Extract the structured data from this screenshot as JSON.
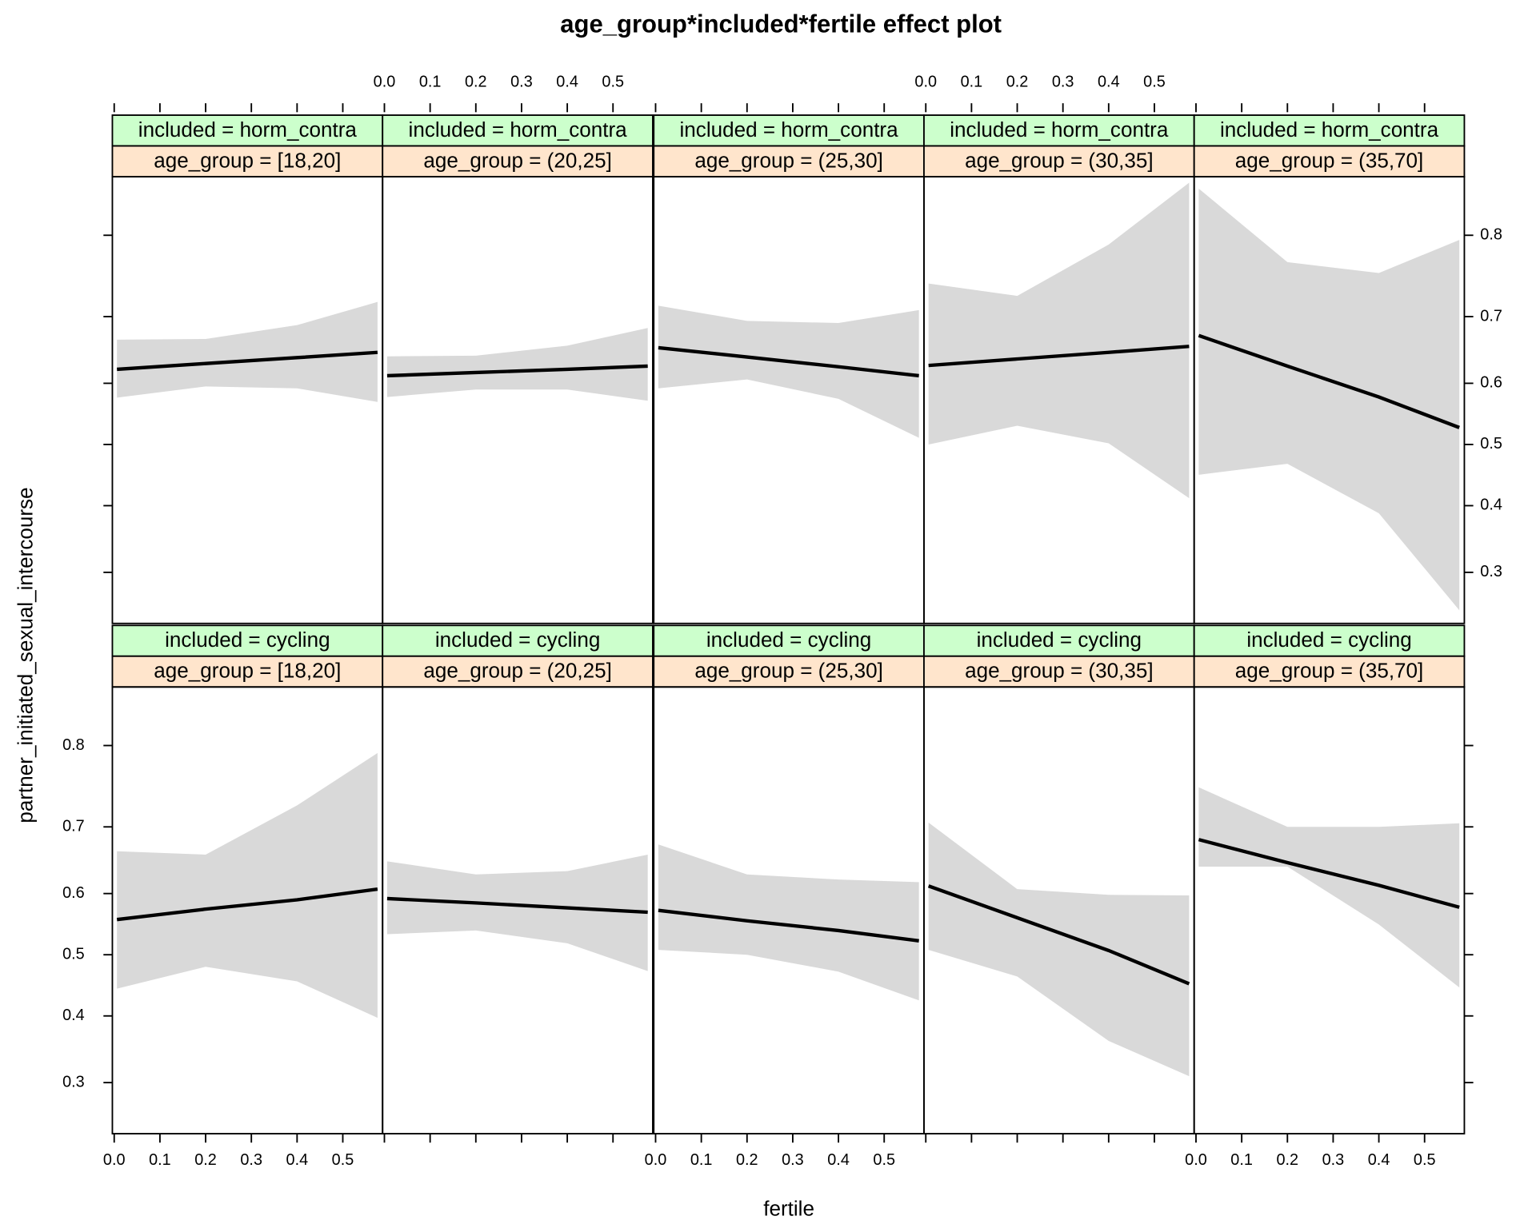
{
  "title": "age_group*included*fertile effect plot",
  "x_label": "fertile",
  "y_label": "partner_initiated_sexual_intercourse",
  "xlim": [
    -0.004,
    0.587
  ],
  "xticks": [
    {
      "value": 0,
      "label": "0.0"
    },
    0.1,
    0.2,
    0.3,
    0.4,
    0.5
  ],
  "ylim": [
    0.234,
    0.855
  ],
  "yticks": [
    0.3,
    0.4,
    0.5,
    0.6,
    0.7,
    0.8
  ],
  "y_scale": "logit",
  "line_color": "#000000",
  "band_color": "#d9d9d9",
  "strip_colors": [
    "#ccffcc",
    "#ffe5cc"
  ],
  "chart_data": [
    {
      "type": "line",
      "strips": [
        "included = horm_contra",
        "age_group = [18,20]"
      ],
      "x": [
        0.006,
        0.2,
        0.4,
        0.576
      ],
      "values": [
        0.622,
        0.631,
        0.64,
        0.648
      ],
      "upper": [
        0.667,
        0.668,
        0.688,
        0.72
      ],
      "lower": [
        0.577,
        0.595,
        0.592,
        0.57
      ]
    },
    {
      "type": "line",
      "strips": [
        "included = horm_contra",
        "age_group = (20,25]"
      ],
      "x": [
        0.006,
        0.2,
        0.4,
        0.576
      ],
      "values": [
        0.612,
        0.617,
        0.622,
        0.627
      ],
      "upper": [
        0.642,
        0.643,
        0.658,
        0.684
      ],
      "lower": [
        0.578,
        0.59,
        0.59,
        0.572
      ]
    },
    {
      "type": "line",
      "strips": [
        "included = horm_contra",
        "age_group = (25,30]"
      ],
      "x": [
        0.006,
        0.2,
        0.4,
        0.576
      ],
      "values": [
        0.655,
        0.641,
        0.626,
        0.612
      ],
      "upper": [
        0.715,
        0.694,
        0.691,
        0.709
      ],
      "lower": [
        0.592,
        0.606,
        0.575,
        0.511
      ]
    },
    {
      "type": "line",
      "strips": [
        "included = horm_contra",
        "age_group = (30,35]"
      ],
      "x": [
        0.006,
        0.2,
        0.4,
        0.576
      ],
      "values": [
        0.628,
        0.638,
        0.648,
        0.657
      ],
      "upper": [
        0.744,
        0.728,
        0.79,
        0.85
      ],
      "lower": [
        0.5,
        0.531,
        0.502,
        0.412
      ]
    },
    {
      "type": "line",
      "strips": [
        "included = horm_contra",
        "age_group = (35,70]"
      ],
      "x": [
        0.006,
        0.2,
        0.4,
        0.576
      ],
      "values": [
        0.673,
        0.627,
        0.578,
        0.528
      ],
      "upper": [
        0.845,
        0.77,
        0.757,
        0.795
      ],
      "lower": [
        0.45,
        0.468,
        0.388,
        0.25
      ]
    },
    {
      "type": "line",
      "strips": [
        "included = cycling",
        "age_group = [18,20]"
      ],
      "x": [
        0.006,
        0.2,
        0.4,
        0.576
      ],
      "values": [
        0.558,
        0.575,
        0.59,
        0.607
      ],
      "upper": [
        0.665,
        0.66,
        0.729,
        0.792
      ],
      "lower": [
        0.444,
        0.48,
        0.456,
        0.397
      ]
    },
    {
      "type": "line",
      "strips": [
        "included = cycling",
        "age_group = (20,25]"
      ],
      "x": [
        0.006,
        0.2,
        0.4,
        0.576
      ],
      "values": [
        0.592,
        0.585,
        0.577,
        0.57
      ],
      "upper": [
        0.65,
        0.63,
        0.635,
        0.66
      ],
      "lower": [
        0.534,
        0.54,
        0.519,
        0.473
      ]
    },
    {
      "type": "line",
      "strips": [
        "included = cycling",
        "age_group = (25,30]"
      ],
      "x": [
        0.006,
        0.2,
        0.4,
        0.576
      ],
      "values": [
        0.573,
        0.556,
        0.54,
        0.523
      ],
      "upper": [
        0.675,
        0.63,
        0.622,
        0.618
      ],
      "lower": [
        0.508,
        0.5,
        0.472,
        0.425
      ]
    },
    {
      "type": "line",
      "strips": [
        "included = cycling",
        "age_group = (30,35]"
      ],
      "x": [
        0.006,
        0.2,
        0.4,
        0.576
      ],
      "values": [
        0.612,
        0.561,
        0.507,
        0.452
      ],
      "upper": [
        0.706,
        0.607,
        0.598,
        0.597
      ],
      "lower": [
        0.508,
        0.464,
        0.361,
        0.309
      ]
    },
    {
      "type": "line",
      "strips": [
        "included = cycling",
        "age_group = (35,70]"
      ],
      "x": [
        0.006,
        0.2,
        0.4,
        0.576
      ],
      "values": [
        0.682,
        0.648,
        0.613,
        0.578
      ],
      "upper": [
        0.752,
        0.7,
        0.7,
        0.705
      ],
      "lower": [
        0.642,
        0.642,
        0.55,
        0.446
      ]
    }
  ]
}
